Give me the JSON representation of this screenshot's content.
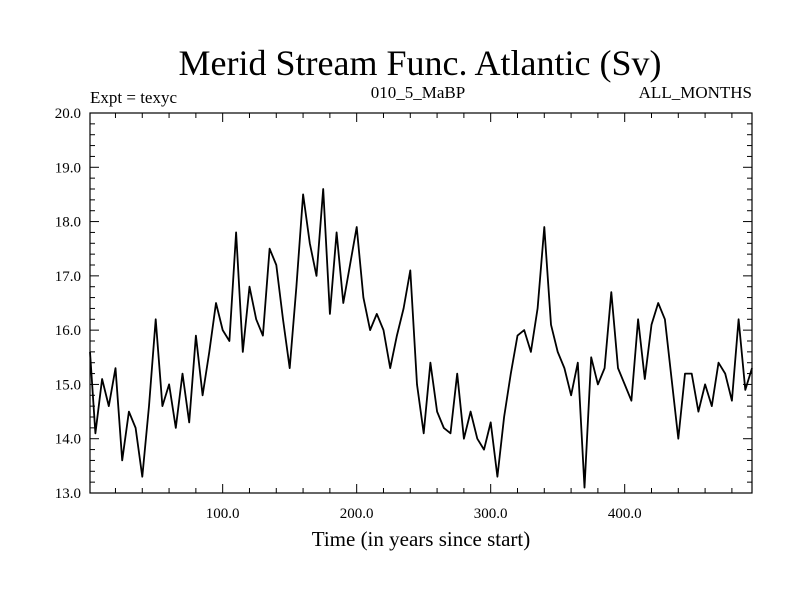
{
  "chart_data": {
    "type": "line",
    "title": "Merid Stream Func. Atlantic (Sv)",
    "header_left": "Expt = texyc",
    "header_center": "010_5_MaBP",
    "header_right": "ALL_MONTHS",
    "xlabel": "Time (in years since start)",
    "ylabel": "",
    "xlim": [
      1,
      495
    ],
    "ylim": [
      13.0,
      20.0
    ],
    "x_ticks": [
      100,
      200,
      300,
      400
    ],
    "x_tick_labels": [
      "100.0",
      "200.0",
      "300.0",
      "400.0"
    ],
    "y_ticks": [
      13,
      14,
      15,
      16,
      17,
      18,
      19,
      20
    ],
    "y_tick_labels": [
      "13.0",
      "14.0",
      "15.0",
      "16.0",
      "17.0",
      "18.0",
      "19.0",
      "20.0"
    ],
    "grid": false,
    "legend": "none",
    "line_color": "#000000",
    "series": [
      {
        "x": [
          1,
          5,
          10,
          15,
          20,
          25,
          30,
          35,
          40,
          45,
          50,
          55,
          60,
          65,
          70,
          75,
          80,
          85,
          90,
          95,
          100,
          105,
          110,
          115,
          120,
          125,
          130,
          135,
          140,
          145,
          150,
          155,
          160,
          165,
          170,
          175,
          180,
          185,
          190,
          195,
          200,
          205,
          210,
          215,
          220,
          225,
          230,
          235,
          240,
          245,
          250,
          255,
          260,
          265,
          270,
          275,
          280,
          285,
          290,
          295,
          300,
          305,
          310,
          315,
          320,
          325,
          330,
          335,
          340,
          345,
          350,
          355,
          360,
          365,
          370,
          375,
          380,
          385,
          390,
          395,
          400,
          405,
          410,
          415,
          420,
          425,
          430,
          435,
          440,
          445,
          450,
          455,
          460,
          465,
          470,
          475,
          480,
          485,
          490,
          495
        ],
        "y": [
          15.6,
          14.1,
          15.1,
          14.6,
          15.3,
          13.6,
          14.5,
          14.2,
          13.3,
          14.6,
          16.2,
          14.6,
          15.0,
          14.2,
          15.2,
          14.3,
          15.9,
          14.8,
          15.6,
          16.5,
          16.0,
          15.8,
          17.8,
          15.6,
          16.8,
          16.2,
          15.9,
          17.5,
          17.2,
          16.2,
          15.3,
          16.8,
          18.5,
          17.6,
          17.0,
          18.6,
          16.3,
          17.8,
          16.5,
          17.2,
          17.9,
          16.6,
          16.0,
          16.3,
          16.0,
          15.3,
          15.9,
          16.4,
          17.1,
          15.0,
          14.1,
          15.4,
          14.5,
          14.2,
          14.1,
          15.2,
          14.0,
          14.5,
          14.0,
          13.8,
          14.3,
          13.3,
          14.4,
          15.2,
          15.9,
          16.0,
          15.6,
          16.4,
          17.9,
          16.1,
          15.6,
          15.3,
          14.8,
          15.4,
          13.1,
          15.5,
          15.0,
          15.3,
          16.7,
          15.3,
          15.0,
          14.7,
          16.2,
          15.1,
          16.1,
          16.5,
          16.2,
          15.1,
          14.0,
          15.2,
          15.2,
          14.5,
          15.0,
          14.6,
          15.4,
          15.2,
          14.7,
          16.2,
          14.9,
          15.3
        ]
      }
    ]
  }
}
